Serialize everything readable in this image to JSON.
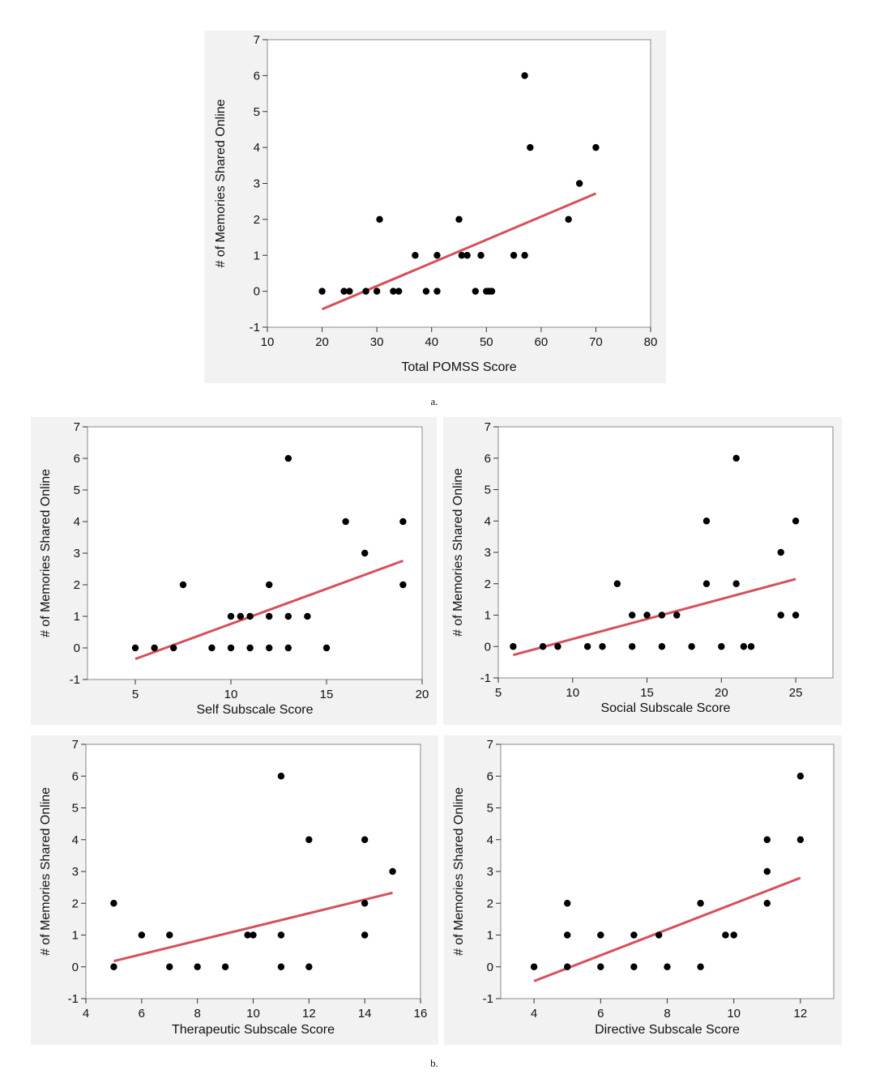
{
  "figure": {
    "caption_a": "a.",
    "caption_b": "b."
  },
  "chart_data": [
    {
      "type": "scatter",
      "id": "total",
      "title": "",
      "xlabel": "Total POMSS Score",
      "ylabel": "# of Memories Shared Online",
      "xlim": [
        10,
        80
      ],
      "ylim": [
        -1,
        7
      ],
      "xticks": [
        10,
        20,
        30,
        40,
        50,
        60,
        70,
        80
      ],
      "yticks": [
        -1,
        0,
        1,
        2,
        3,
        4,
        5,
        6,
        7
      ],
      "points": [
        [
          20,
          0
        ],
        [
          24,
          0
        ],
        [
          25,
          0
        ],
        [
          28,
          0
        ],
        [
          30,
          0
        ],
        [
          30.5,
          2
        ],
        [
          33,
          0
        ],
        [
          34,
          0
        ],
        [
          37,
          1
        ],
        [
          39,
          0
        ],
        [
          41,
          1
        ],
        [
          41,
          0
        ],
        [
          45,
          2
        ],
        [
          45.5,
          1
        ],
        [
          46.5,
          1
        ],
        [
          48,
          0
        ],
        [
          49,
          1
        ],
        [
          50,
          0
        ],
        [
          50.5,
          0
        ],
        [
          51,
          0
        ],
        [
          55,
          1
        ],
        [
          57,
          1
        ],
        [
          57,
          6
        ],
        [
          58,
          4
        ],
        [
          65,
          2
        ],
        [
          67,
          3
        ],
        [
          70,
          4
        ]
      ],
      "fit_line": [
        [
          20,
          -0.5
        ],
        [
          70,
          2.72
        ]
      ]
    },
    {
      "type": "scatter",
      "id": "self",
      "title": "",
      "xlabel": "Self Subscale Score",
      "ylabel": "# of Memories Shared Online",
      "xlim": [
        2.5,
        20
      ],
      "ylim": [
        -1,
        7
      ],
      "xticks": [
        5,
        10,
        15,
        20
      ],
      "yticks": [
        -1,
        0,
        1,
        2,
        3,
        4,
        5,
        6,
        7
      ],
      "points": [
        [
          5,
          0
        ],
        [
          6,
          0
        ],
        [
          7,
          0
        ],
        [
          7.5,
          2
        ],
        [
          9,
          0
        ],
        [
          10,
          1
        ],
        [
          10,
          0
        ],
        [
          10.5,
          1
        ],
        [
          11,
          1
        ],
        [
          11,
          0
        ],
        [
          12,
          2
        ],
        [
          12,
          1
        ],
        [
          12,
          0
        ],
        [
          13,
          6
        ],
        [
          13,
          1
        ],
        [
          13,
          0
        ],
        [
          14,
          1
        ],
        [
          15,
          0
        ],
        [
          16,
          4
        ],
        [
          17,
          3
        ],
        [
          19,
          4
        ],
        [
          19,
          2
        ]
      ],
      "fit_line": [
        [
          5,
          -0.35
        ],
        [
          19,
          2.76
        ]
      ]
    },
    {
      "type": "scatter",
      "id": "social",
      "title": "",
      "xlabel": "Social Subscale Score",
      "ylabel": "# of Memories Shared Online",
      "xlim": [
        5,
        27.5
      ],
      "ylim": [
        -1,
        7
      ],
      "xticks": [
        5,
        10,
        15,
        20,
        25
      ],
      "yticks": [
        -1,
        0,
        1,
        2,
        3,
        4,
        5,
        6,
        7
      ],
      "points": [
        [
          6,
          0
        ],
        [
          8,
          0
        ],
        [
          9,
          0
        ],
        [
          11,
          0
        ],
        [
          12,
          0
        ],
        [
          13,
          2
        ],
        [
          14,
          1
        ],
        [
          14,
          0
        ],
        [
          15,
          1
        ],
        [
          16,
          1
        ],
        [
          16,
          0
        ],
        [
          17,
          1
        ],
        [
          18,
          0
        ],
        [
          19,
          4
        ],
        [
          19,
          2
        ],
        [
          20,
          0
        ],
        [
          21,
          6
        ],
        [
          21,
          2
        ],
        [
          21.5,
          0
        ],
        [
          22,
          0
        ],
        [
          24,
          3
        ],
        [
          24,
          1
        ],
        [
          25,
          4
        ],
        [
          25,
          1
        ]
      ],
      "fit_line": [
        [
          6,
          -0.27
        ],
        [
          25,
          2.15
        ]
      ]
    },
    {
      "type": "scatter",
      "id": "therapeutic",
      "title": "",
      "xlabel": "Therapeutic Subscale Score",
      "ylabel": "# of Memories Shared Online",
      "xlim": [
        4,
        16
      ],
      "ylim": [
        -1,
        7
      ],
      "xticks": [
        4,
        6,
        8,
        10,
        12,
        14,
        16
      ],
      "yticks": [
        -1,
        0,
        1,
        2,
        3,
        4,
        5,
        6,
        7
      ],
      "points": [
        [
          5,
          2
        ],
        [
          5,
          0
        ],
        [
          6,
          1
        ],
        [
          7,
          1
        ],
        [
          7,
          0
        ],
        [
          8,
          0
        ],
        [
          9,
          0
        ],
        [
          9.8,
          1
        ],
        [
          10,
          1
        ],
        [
          11,
          6
        ],
        [
          11,
          1
        ],
        [
          11,
          0
        ],
        [
          12,
          4
        ],
        [
          12,
          0
        ],
        [
          14,
          4
        ],
        [
          14,
          2
        ],
        [
          14,
          1
        ],
        [
          15,
          3
        ]
      ],
      "fit_line": [
        [
          5,
          0.18
        ],
        [
          15,
          2.33
        ]
      ]
    },
    {
      "type": "scatter",
      "id": "directive",
      "title": "",
      "xlabel": "Directive Subscale Score",
      "ylabel": "# of Memories Shared Online",
      "xlim": [
        3,
        13
      ],
      "ylim": [
        -1,
        7
      ],
      "xticks": [
        4,
        6,
        8,
        10,
        12
      ],
      "yticks": [
        -1,
        0,
        1,
        2,
        3,
        4,
        5,
        6,
        7
      ],
      "points": [
        [
          4,
          0
        ],
        [
          5,
          2
        ],
        [
          5,
          1
        ],
        [
          5,
          0
        ],
        [
          6,
          1
        ],
        [
          6,
          0
        ],
        [
          7,
          1
        ],
        [
          7,
          0
        ],
        [
          7.75,
          1
        ],
        [
          8,
          0
        ],
        [
          9,
          2
        ],
        [
          9,
          0
        ],
        [
          9.75,
          1
        ],
        [
          10,
          1
        ],
        [
          11,
          4
        ],
        [
          11,
          3
        ],
        [
          11,
          2
        ],
        [
          12,
          6
        ],
        [
          12,
          4
        ]
      ],
      "fit_line": [
        [
          4,
          -0.45
        ],
        [
          12,
          2.8
        ]
      ]
    }
  ]
}
